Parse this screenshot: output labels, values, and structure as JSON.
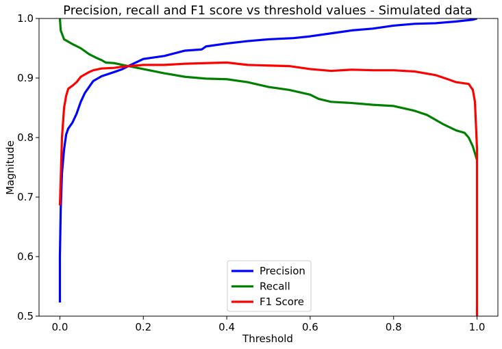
{
  "chart_data": {
    "type": "line",
    "title": "Precision, recall and F1 score vs threshold values - Simulated data",
    "xlabel": "Threshold",
    "ylabel": "Magnitude",
    "xlim": [
      -0.05,
      1.05
    ],
    "ylim": [
      0.5,
      1.0
    ],
    "xticks": [
      "0.0",
      "0.2",
      "0.4",
      "0.6",
      "0.8",
      "1.0"
    ],
    "yticks": [
      "0.5",
      "0.6",
      "0.7",
      "0.8",
      "0.9",
      "1.0"
    ],
    "grid": false,
    "legend_position": "bottom-center",
    "series": [
      {
        "name": "Precision",
        "color": "#0000ff",
        "points": [
          [
            0.0,
            0.523
          ],
          [
            0.0,
            0.6
          ],
          [
            0.002,
            0.68
          ],
          [
            0.005,
            0.74
          ],
          [
            0.01,
            0.78
          ],
          [
            0.015,
            0.805
          ],
          [
            0.02,
            0.815
          ],
          [
            0.03,
            0.825
          ],
          [
            0.04,
            0.84
          ],
          [
            0.05,
            0.86
          ],
          [
            0.06,
            0.875
          ],
          [
            0.07,
            0.885
          ],
          [
            0.08,
            0.895
          ],
          [
            0.1,
            0.903
          ],
          [
            0.13,
            0.91
          ],
          [
            0.15,
            0.915
          ],
          [
            0.17,
            0.922
          ],
          [
            0.2,
            0.932
          ],
          [
            0.25,
            0.937
          ],
          [
            0.3,
            0.946
          ],
          [
            0.34,
            0.948
          ],
          [
            0.35,
            0.953
          ],
          [
            0.4,
            0.958
          ],
          [
            0.45,
            0.962
          ],
          [
            0.5,
            0.965
          ],
          [
            0.56,
            0.967
          ],
          [
            0.6,
            0.97
          ],
          [
            0.65,
            0.975
          ],
          [
            0.7,
            0.98
          ],
          [
            0.75,
            0.983
          ],
          [
            0.8,
            0.988
          ],
          [
            0.85,
            0.991
          ],
          [
            0.9,
            0.992
          ],
          [
            0.95,
            0.995
          ],
          [
            0.99,
            0.998
          ],
          [
            1.0,
            1.0
          ]
        ]
      },
      {
        "name": "Recall",
        "color": "#008000",
        "points": [
          [
            0.0,
            1.0
          ],
          [
            0.002,
            0.98
          ],
          [
            0.01,
            0.965
          ],
          [
            0.03,
            0.957
          ],
          [
            0.05,
            0.95
          ],
          [
            0.07,
            0.94
          ],
          [
            0.09,
            0.933
          ],
          [
            0.1,
            0.93
          ],
          [
            0.11,
            0.926
          ],
          [
            0.13,
            0.925
          ],
          [
            0.15,
            0.922
          ],
          [
            0.2,
            0.915
          ],
          [
            0.25,
            0.908
          ],
          [
            0.3,
            0.902
          ],
          [
            0.35,
            0.899
          ],
          [
            0.4,
            0.898
          ],
          [
            0.45,
            0.893
          ],
          [
            0.5,
            0.885
          ],
          [
            0.55,
            0.88
          ],
          [
            0.6,
            0.872
          ],
          [
            0.62,
            0.865
          ],
          [
            0.65,
            0.86
          ],
          [
            0.7,
            0.858
          ],
          [
            0.75,
            0.855
          ],
          [
            0.8,
            0.853
          ],
          [
            0.85,
            0.845
          ],
          [
            0.88,
            0.838
          ],
          [
            0.9,
            0.83
          ],
          [
            0.92,
            0.822
          ],
          [
            0.95,
            0.812
          ],
          [
            0.97,
            0.808
          ],
          [
            0.98,
            0.8
          ],
          [
            0.99,
            0.785
          ],
          [
            1.0,
            0.762
          ]
        ]
      },
      {
        "name": "F1 Score",
        "color": "#ff0000",
        "points": [
          [
            0.0,
            0.686
          ],
          [
            0.002,
            0.73
          ],
          [
            0.005,
            0.8
          ],
          [
            0.01,
            0.85
          ],
          [
            0.015,
            0.87
          ],
          [
            0.02,
            0.882
          ],
          [
            0.03,
            0.887
          ],
          [
            0.04,
            0.893
          ],
          [
            0.05,
            0.902
          ],
          [
            0.06,
            0.906
          ],
          [
            0.07,
            0.91
          ],
          [
            0.08,
            0.913
          ],
          [
            0.1,
            0.916
          ],
          [
            0.13,
            0.917
          ],
          [
            0.15,
            0.919
          ],
          [
            0.2,
            0.922
          ],
          [
            0.25,
            0.922
          ],
          [
            0.3,
            0.924
          ],
          [
            0.35,
            0.925
          ],
          [
            0.4,
            0.926
          ],
          [
            0.45,
            0.922
          ],
          [
            0.5,
            0.921
          ],
          [
            0.55,
            0.92
          ],
          [
            0.6,
            0.915
          ],
          [
            0.65,
            0.912
          ],
          [
            0.7,
            0.914
          ],
          [
            0.75,
            0.913
          ],
          [
            0.8,
            0.913
          ],
          [
            0.85,
            0.911
          ],
          [
            0.9,
            0.905
          ],
          [
            0.93,
            0.898
          ],
          [
            0.95,
            0.893
          ],
          [
            0.98,
            0.89
          ],
          [
            0.99,
            0.88
          ],
          [
            0.995,
            0.86
          ],
          [
            1.0,
            0.78
          ],
          [
            1.0,
            0.5
          ]
        ]
      }
    ]
  }
}
